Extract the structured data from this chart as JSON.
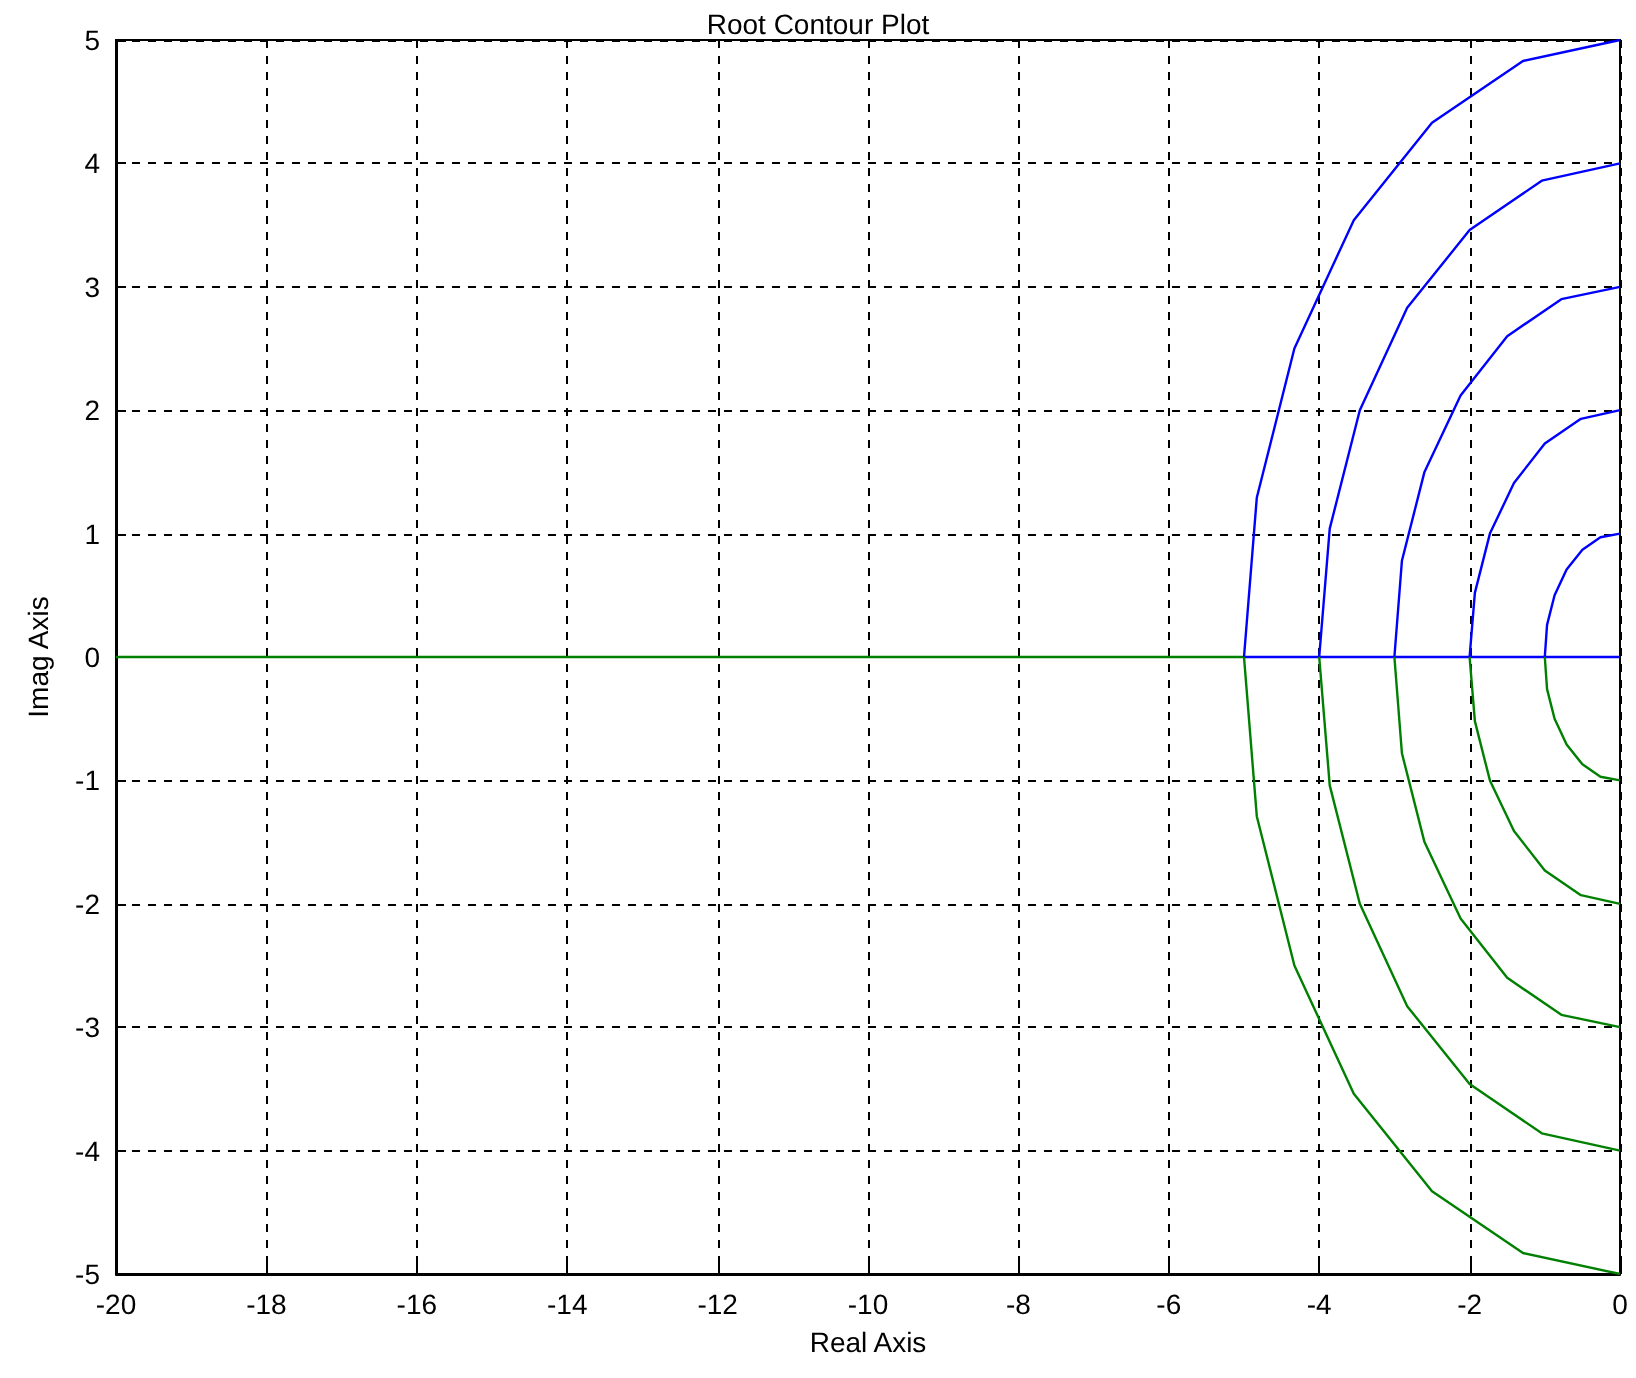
{
  "chart_data": {
    "type": "line",
    "title": "Root Contour Plot",
    "xlabel": "Real Axis",
    "ylabel": "Imag Axis",
    "xlim": [
      -20,
      0
    ],
    "xticks": [
      -20,
      -18,
      -16,
      -14,
      -12,
      -10,
      -8,
      -6,
      -4,
      -2,
      0
    ],
    "ylim": [
      -5,
      5
    ],
    "yticks": [
      -5,
      -4,
      -3,
      -2,
      -1,
      0,
      1,
      2,
      3,
      4,
      5
    ],
    "grid": true,
    "marker": "none",
    "line_style": "solid",
    "series": [
      {
        "color": "#008000",
        "x": [
          -20,
          -5
        ],
        "values": [
          0,
          0
        ]
      },
      {
        "color": "#0000ff",
        "x": [
          -5,
          0
        ],
        "values": [
          0,
          0
        ]
      },
      {
        "color": "#0000ff",
        "x": [
          -5,
          -4.83,
          -4.33,
          -3.54,
          -2.5,
          -1.29,
          0
        ],
        "values": [
          0,
          1.29,
          2.5,
          3.54,
          4.33,
          4.83,
          5
        ]
      },
      {
        "color": "#0000ff",
        "x": [
          -4,
          -3.86,
          -3.46,
          -2.83,
          -2,
          -1.04,
          0
        ],
        "values": [
          0,
          1.04,
          2,
          2.83,
          3.46,
          3.86,
          4
        ]
      },
      {
        "color": "#0000ff",
        "x": [
          -3,
          -2.9,
          -2.6,
          -2.12,
          -1.5,
          -0.78,
          0
        ],
        "values": [
          0,
          0.78,
          1.5,
          2.12,
          2.6,
          2.9,
          3
        ]
      },
      {
        "color": "#0000ff",
        "x": [
          -2,
          -1.93,
          -1.73,
          -1.41,
          -1,
          -0.52,
          0
        ],
        "values": [
          0,
          0.52,
          1,
          1.41,
          1.73,
          1.93,
          2
        ]
      },
      {
        "color": "#0000ff",
        "x": [
          -1,
          -0.97,
          -0.87,
          -0.71,
          -0.5,
          -0.26,
          0
        ],
        "values": [
          0,
          0.26,
          0.5,
          0.71,
          0.87,
          0.97,
          1
        ]
      },
      {
        "color": "#008000",
        "x": [
          -5,
          -4.83,
          -4.33,
          -3.54,
          -2.5,
          -1.29,
          0
        ],
        "values": [
          0,
          -1.29,
          -2.5,
          -3.54,
          -4.33,
          -4.83,
          -5
        ]
      },
      {
        "color": "#008000",
        "x": [
          -4,
          -3.86,
          -3.46,
          -2.83,
          -2,
          -1.04,
          0
        ],
        "values": [
          0,
          -1.04,
          -2,
          -2.83,
          -3.46,
          -3.86,
          -4
        ]
      },
      {
        "color": "#008000",
        "x": [
          -3,
          -2.9,
          -2.6,
          -2.12,
          -1.5,
          -0.78,
          0
        ],
        "values": [
          0,
          -0.78,
          -1.5,
          -2.12,
          -2.6,
          -2.9,
          -3
        ]
      },
      {
        "color": "#008000",
        "x": [
          -2,
          -1.93,
          -1.73,
          -1.41,
          -1,
          -0.52,
          0
        ],
        "values": [
          0,
          -0.52,
          -1,
          -1.41,
          -1.73,
          -1.93,
          -2
        ]
      },
      {
        "color": "#008000",
        "x": [
          -1,
          -0.97,
          -0.87,
          -0.71,
          -0.5,
          -0.26,
          0
        ],
        "values": [
          0,
          -0.26,
          -0.5,
          -0.71,
          -0.87,
          -0.97,
          -1
        ]
      }
    ]
  }
}
